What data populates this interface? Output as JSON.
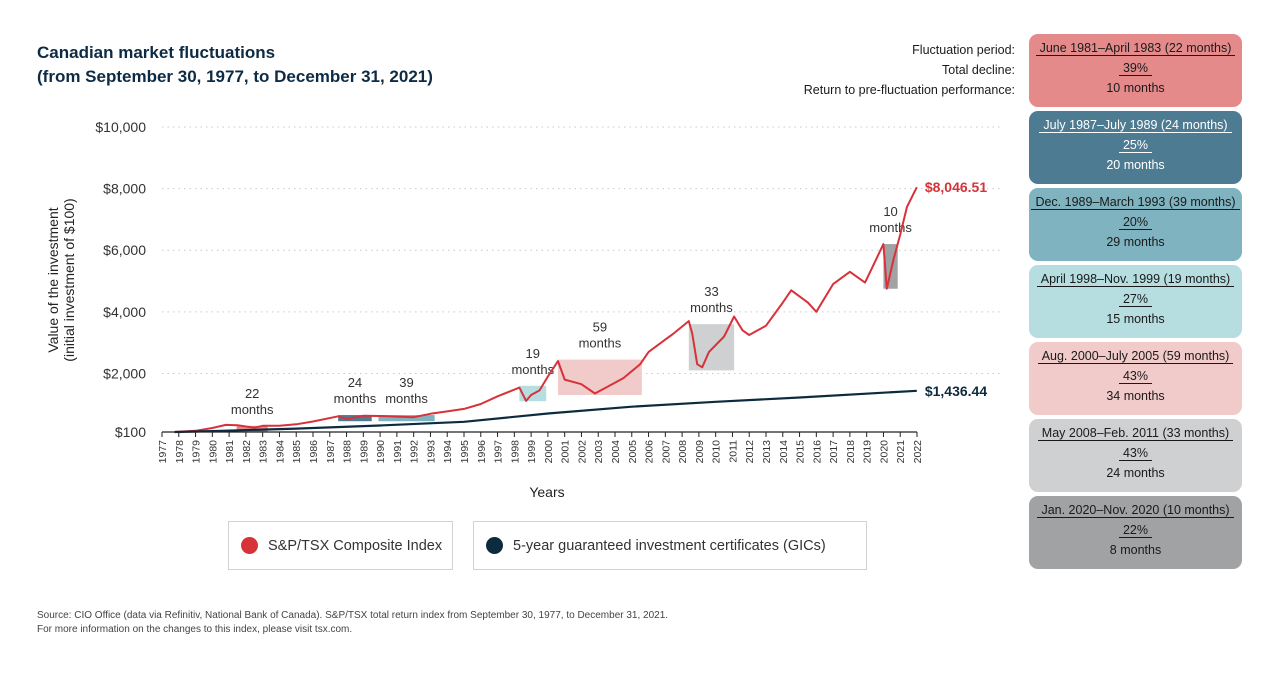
{
  "title_line1": "Canadian market fluctuations",
  "title_line2": "(from September 30, 1977, to December 31, 2021)",
  "side_labels": {
    "period": "Fluctuation period:",
    "decline": "Total decline:",
    "return": "Return to pre-fluctuation performance:"
  },
  "cards": [
    {
      "period": "June 1981–April 1983 (22 months)",
      "decline": "39%",
      "return": "10 months",
      "color": "#e48a8b",
      "text_color": "#1a1a1a"
    },
    {
      "period": "July 1987–July 1989 (24 months)",
      "decline": "25%",
      "return": "20 months",
      "color": "#4d7b91",
      "text_color": "#ffffff"
    },
    {
      "period": "Dec. 1989–March 1993 (39 months)",
      "decline": "20%",
      "return": "29 months",
      "color": "#7fb3bf",
      "text_color": "#1a1a1a"
    },
    {
      "period": "April 1998–Nov. 1999 (19 months)",
      "decline": "27%",
      "return": "15 months",
      "color": "#b6dde0",
      "text_color": "#1a1a1a"
    },
    {
      "period": "Aug. 2000–July 2005 (59 months)",
      "decline": "43%",
      "return": "34 months",
      "color": "#f0cbc9",
      "text_color": "#1a1a1a"
    },
    {
      "period": "May 2008–Feb. 2011 (33 months)",
      "decline": "43%",
      "return": "24 months",
      "color": "#cfd0d1",
      "text_color": "#1a1a1a"
    },
    {
      "period": "Jan. 2020–Nov. 2020 (10 months)",
      "decline": "22%",
      "return": "8 months",
      "color": "#a0a2a4",
      "text_color": "#1a1a1a"
    }
  ],
  "legend": {
    "tsx": "S&P/TSX Composite Index",
    "gic": "5-year guaranteed investment certificates (GICs)"
  },
  "source_line1": "Source: CIO Office (data via Refinitiv, National Bank of Canada). S&P/TSX total return index from September 30, 1977, to December 31, 2021.",
  "source_line2": "For more information on the changes to this index, please visit tsx.com.",
  "chart_data": {
    "type": "line",
    "xlabel": "Years",
    "ylabel_line1": "Value of the investment",
    "ylabel_line2": "(initial investment of $100)",
    "ylim": [
      100,
      10000
    ],
    "xlim": [
      1977,
      2022
    ],
    "y_ticks": [
      {
        "value": 100,
        "label": "$100"
      },
      {
        "value": 2000,
        "label": "$2,000"
      },
      {
        "value": 4000,
        "label": "$4,000"
      },
      {
        "value": 6000,
        "label": "$6,000"
      },
      {
        "value": 8000,
        "label": "$8,000"
      },
      {
        "value": 10000,
        "label": "$10,000"
      }
    ],
    "x_ticks": [
      "1977",
      "1978",
      "1979",
      "1980",
      "1981",
      "1982",
      "1983",
      "1984",
      "1985",
      "1986",
      "1987",
      "1988",
      "1989",
      "1990",
      "1991",
      "1992",
      "1993",
      "1994",
      "1995",
      "1996",
      "1997",
      "1998",
      "1999",
      "2000",
      "2001",
      "2002",
      "2003",
      "2004",
      "2005",
      "2006",
      "2007",
      "2008",
      "2009",
      "2010",
      "2011",
      "2012",
      "2013",
      "2014",
      "2015",
      "2016",
      "2017",
      "2018",
      "2019",
      "2020",
      "2021",
      "2022"
    ],
    "grid": true,
    "series": [
      {
        "name": "S&P/TSX Composite Index",
        "color": "#d7323a",
        "end_label": "$8,046.51",
        "points": [
          [
            1977.75,
            100
          ],
          [
            1979,
            140
          ],
          [
            1980,
            230
          ],
          [
            1980.8,
            330
          ],
          [
            1981.5,
            320
          ],
          [
            1982.5,
            240
          ],
          [
            1983,
            300
          ],
          [
            1984,
            300
          ],
          [
            1985,
            350
          ],
          [
            1986,
            440
          ],
          [
            1987.5,
            610
          ],
          [
            1988,
            520
          ],
          [
            1989,
            630
          ],
          [
            1990,
            620
          ],
          [
            1991,
            600
          ],
          [
            1992,
            580
          ],
          [
            1993,
            690
          ],
          [
            1994,
            770
          ],
          [
            1995,
            850
          ],
          [
            1996,
            1010
          ],
          [
            1997,
            1260
          ],
          [
            1998.3,
            1540
          ],
          [
            1998.7,
            1110
          ],
          [
            1999,
            1300
          ],
          [
            1999.5,
            1450
          ],
          [
            2000,
            1900
          ],
          [
            2000.6,
            2400
          ],
          [
            2001,
            1800
          ],
          [
            2002,
            1650
          ],
          [
            2002.8,
            1350
          ],
          [
            2003.5,
            1550
          ],
          [
            2004.5,
            1850
          ],
          [
            2005.5,
            2300
          ],
          [
            2006,
            2700
          ],
          [
            2007,
            3100
          ],
          [
            2007.5,
            3300
          ],
          [
            2008.4,
            3700
          ],
          [
            2008.6,
            3300
          ],
          [
            2008.9,
            2300
          ],
          [
            2009.2,
            2200
          ],
          [
            2009.6,
            2700
          ],
          [
            2010.5,
            3200
          ],
          [
            2011.1,
            3850
          ],
          [
            2011.6,
            3400
          ],
          [
            2012,
            3250
          ],
          [
            2013,
            3550
          ],
          [
            2014,
            4300
          ],
          [
            2014.5,
            4700
          ],
          [
            2015.5,
            4300
          ],
          [
            2016,
            4000
          ],
          [
            2017,
            4900
          ],
          [
            2018,
            5300
          ],
          [
            2018.9,
            4950
          ],
          [
            2019.3,
            5400
          ],
          [
            2020,
            6200
          ],
          [
            2020.2,
            4750
          ],
          [
            2020.6,
            5700
          ],
          [
            2021,
            6500
          ],
          [
            2021.4,
            7400
          ],
          [
            2021.99,
            8046.51
          ]
        ]
      },
      {
        "name": "5-year guaranteed investment certificates (GICs)",
        "color": "#0d2b3e",
        "end_label": "$1,436.44",
        "points": [
          [
            1977.75,
            100
          ],
          [
            1980,
            130
          ],
          [
            1985,
            210
          ],
          [
            1990,
            310
          ],
          [
            1995,
            430
          ],
          [
            2000,
            700
          ],
          [
            2005,
            920
          ],
          [
            2010,
            1080
          ],
          [
            2015,
            1220
          ],
          [
            2021.99,
            1436.44
          ]
        ]
      }
    ],
    "fluctuation_boxes": [
      {
        "x0": 1981.45,
        "x1": 1983.3,
        "y0": 100,
        "y1": 300,
        "color": "#e48a8b",
        "label": [
          "22",
          "months"
        ]
      },
      {
        "x0": 1987.5,
        "x1": 1989.5,
        "y0": 450,
        "y1": 650,
        "color": "#4d7b91",
        "label": [
          "24",
          "months"
        ]
      },
      {
        "x0": 1989.9,
        "x1": 1993.25,
        "y0": 450,
        "y1": 650,
        "color": "#7fb3bf",
        "label": [
          "39",
          "months"
        ]
      },
      {
        "x0": 1998.3,
        "x1": 1999.9,
        "y0": 1100,
        "y1": 1600,
        "color": "#b6dde0",
        "label": [
          "19",
          "months"
        ]
      },
      {
        "x0": 2000.6,
        "x1": 2005.6,
        "y0": 1300,
        "y1": 2450,
        "color": "#f0cbc9",
        "label": [
          "59",
          "months"
        ]
      },
      {
        "x0": 2008.4,
        "x1": 2011.1,
        "y0": 2100,
        "y1": 3600,
        "color": "#cfd0d1",
        "label": [
          "33",
          "months"
        ]
      },
      {
        "x0": 2020.0,
        "x1": 2020.85,
        "y0": 4750,
        "y1": 6200,
        "color": "#a0a2a4",
        "label": [
          "10",
          "months"
        ]
      }
    ]
  }
}
